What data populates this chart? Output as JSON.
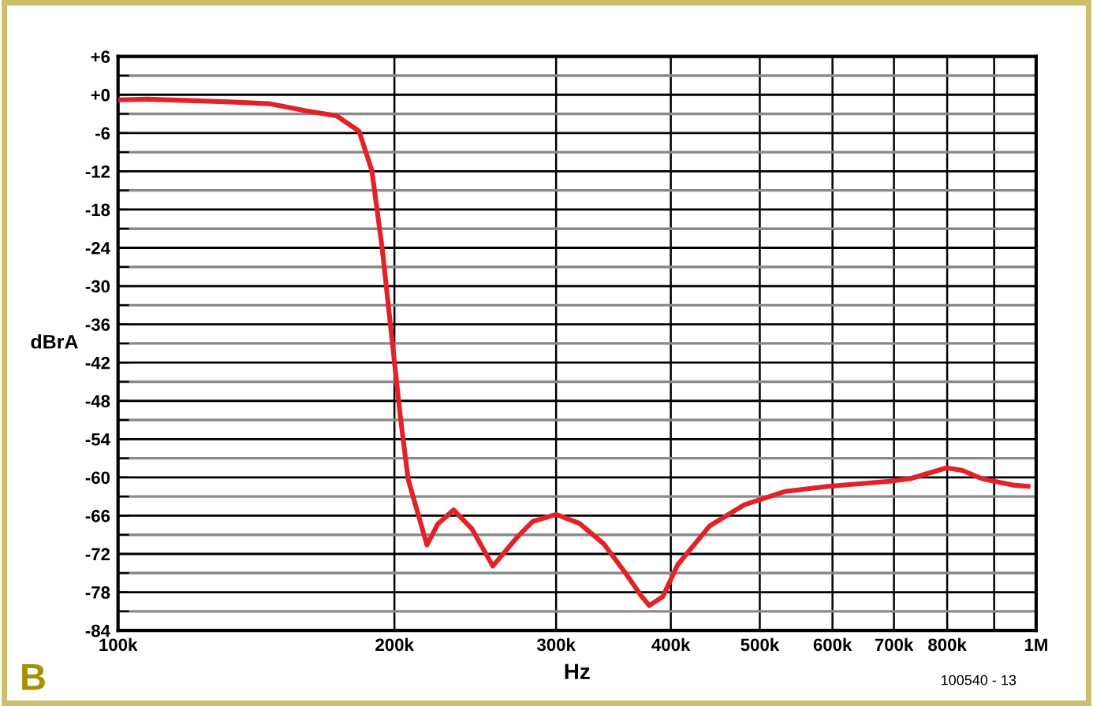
{
  "chart_data": {
    "type": "line",
    "xlabel": "Hz",
    "ylabel": "dBrA",
    "log": "x",
    "grid": true,
    "marker": "none",
    "line_style": "solid",
    "xlim": [
      100000,
      1000000
    ],
    "ylim": [
      -84,
      6
    ],
    "xticks": [
      {
        "value": 100000,
        "label": "100k"
      },
      {
        "value": 200000,
        "label": "200k"
      },
      {
        "value": 300000,
        "label": "300k"
      },
      {
        "value": 400000,
        "label": "400k"
      },
      {
        "value": 500000,
        "label": "500k"
      },
      {
        "value": 600000,
        "label": "600k"
      },
      {
        "value": 700000,
        "label": "700k"
      },
      {
        "value": 800000,
        "label": "800k"
      },
      {
        "value": 900000,
        "label": null
      },
      {
        "value": 1000000,
        "label": "1M"
      }
    ],
    "yticks": [
      {
        "value": 6,
        "label": "+6"
      },
      {
        "value": 3,
        "label": null
      },
      {
        "value": 0,
        "label": "+0"
      },
      {
        "value": -3,
        "label": null
      },
      -6,
      {
        "value": -9,
        "label": null
      },
      -12,
      {
        "value": -15,
        "label": null
      },
      -18,
      {
        "value": -21,
        "label": null
      },
      -24,
      {
        "value": -27,
        "label": null
      },
      -30,
      {
        "value": -33,
        "label": null
      },
      -36,
      {
        "value": -39,
        "label": null
      },
      -42,
      {
        "value": -45,
        "label": null
      },
      -48,
      {
        "value": -51,
        "label": null
      },
      -54,
      {
        "value": -57,
        "label": null
      },
      -60,
      {
        "value": -63,
        "label": null
      },
      -66,
      {
        "value": -69,
        "label": null
      },
      -72,
      {
        "value": -75,
        "label": null
      },
      -78,
      {
        "value": -81,
        "label": null
      },
      -84
    ],
    "annotations": [
      "B",
      "100540 - 13"
    ],
    "series": [
      {
        "color": "#e32228",
        "x": [
          100000,
          107600,
          131000,
          146000,
          160000,
          173000,
          183000,
          189000,
          194000,
          199000,
          203000,
          207000,
          217000,
          223000,
          232000,
          243000,
          256000,
          272000,
          283000,
          300000,
          318000,
          338000,
          357000,
          372000,
          379000,
          392000,
          407000,
          441000,
          481000,
          533000,
          594000,
          693000,
          729000,
          799000,
          831000,
          873000,
          943000,
          980000
        ],
        "values": [
          -0.8,
          -0.7,
          -1.1,
          -1.4,
          -2.5,
          -3.3,
          -5.7,
          -11.9,
          -24.2,
          -39,
          -50.5,
          -60.3,
          -70.6,
          -67.3,
          -65.1,
          -68.1,
          -73.9,
          -69.4,
          -66.9,
          -65.8,
          -67.2,
          -70.4,
          -75,
          -78.7,
          -80.1,
          -78.7,
          -73.7,
          -67.6,
          -64.3,
          -62.2,
          -61.4,
          -60.6,
          -60.2,
          -58.5,
          -58.9,
          -60.2,
          -61.2,
          -61.4
        ]
      }
    ]
  }
}
